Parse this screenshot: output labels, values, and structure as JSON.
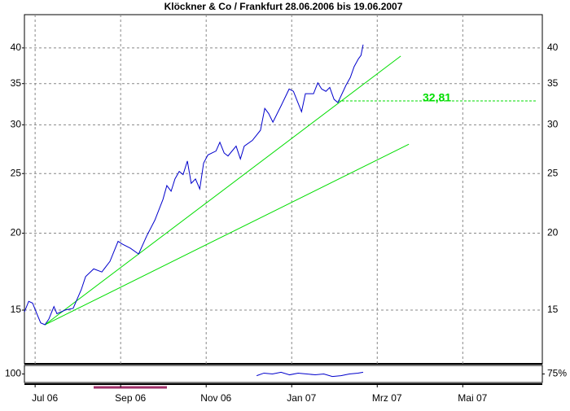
{
  "chart_data": [
    {
      "type": "line",
      "title": "Klöckner & Co / Frankfurt 28.06.2006 bis 19.06.2007",
      "log_scale": true,
      "grid": true,
      "xlim": [
        0,
        12.11
      ],
      "ylim": [
        12.27,
        45.3
      ],
      "yticks": [
        15,
        20,
        25,
        30,
        35,
        40
      ],
      "xticks": [
        {
          "value": 0.25,
          "label": "Jul 06"
        },
        {
          "value": 2.25,
          "label": "Sep 06"
        },
        {
          "value": 4.25,
          "label": "Nov 06"
        },
        {
          "value": 6.25,
          "label": "Jan 07"
        },
        {
          "value": 8.25,
          "label": "Mrz 07"
        },
        {
          "value": 10.25,
          "label": "Mai 07"
        }
      ],
      "x": [
        0,
        0.1,
        0.19,
        0.29,
        0.38,
        0.48,
        0.57,
        0.69,
        0.76,
        0.95,
        1.14,
        1.33,
        1.43,
        1.62,
        1.81,
        2,
        2.19,
        2.29,
        2.48,
        2.67,
        2.86,
        3.05,
        3.24,
        3.33,
        3.43,
        3.52,
        3.62,
        3.71,
        3.81,
        3.9,
        4,
        4.1,
        4.19,
        4.29,
        4.48,
        4.57,
        4.67,
        4.76,
        4.95,
        5.05,
        5.14,
        5.33,
        5.52,
        5.62,
        5.71,
        5.81,
        6,
        6.19,
        6.29,
        6.48,
        6.57,
        6.76,
        6.86,
        6.95,
        7.05,
        7.14,
        7.24,
        7.33,
        7.52,
        7.62,
        7.71,
        7.81,
        7.87,
        7.92
      ],
      "series": [
        {
          "color": "#0000cc",
          "values": [
            14.9,
            15.5,
            15.4,
            14.8,
            14.3,
            14.2,
            14.5,
            15.2,
            14.8,
            15.0,
            15.1,
            16.2,
            17.0,
            17.5,
            17.3,
            18.0,
            19.4,
            19.2,
            18.9,
            18.5,
            19.8,
            21.0,
            22.7,
            23.9,
            23.4,
            24.5,
            25.2,
            24.9,
            26.2,
            24.1,
            24.5,
            23.6,
            26.0,
            26.8,
            27.2,
            28.1,
            27.0,
            26.7,
            27.7,
            26.4,
            27.7,
            28.3,
            29.4,
            31.9,
            31.3,
            30.3,
            32.2,
            34.3,
            34.0,
            31.5,
            33.7,
            33.7,
            35.1,
            34.3,
            34.0,
            34.5,
            33.0,
            32.6,
            34.8,
            35.8,
            37.3,
            38.4,
            38.9,
            40.5
          ]
        }
      ],
      "trendlines": [
        {
          "color": "#00dd00",
          "x": [
            0.48,
            8.8
          ],
          "values": [
            14.2,
            38.8
          ]
        },
        {
          "color": "#00dd00",
          "x": [
            0.48,
            8.99
          ],
          "values": [
            14.2,
            27.9
          ]
        }
      ],
      "hlines": [
        {
          "color": "#00dd00",
          "value": 32.81,
          "label": "32,81",
          "x": [
            7.33,
            11.96
          ]
        }
      ]
    },
    {
      "type": "line",
      "ylim": [
        90,
        110
      ],
      "yticks": [
        100
      ],
      "y2lim": [
        50,
        100
      ],
      "y2ticks": [
        {
          "value": 75,
          "label": "75%"
        }
      ],
      "x": [
        5.43,
        5.6,
        5.8,
        6.0,
        6.2,
        6.4,
        6.6,
        6.8,
        7.0,
        7.2,
        7.4,
        7.6,
        7.8,
        7.92
      ],
      "series": [
        {
          "color": "#0000cc",
          "values": [
            98,
            101,
            100,
            102,
            99,
            101,
            100,
            99,
            100,
            97,
            98,
            100,
            101,
            102
          ]
        }
      ]
    }
  ]
}
